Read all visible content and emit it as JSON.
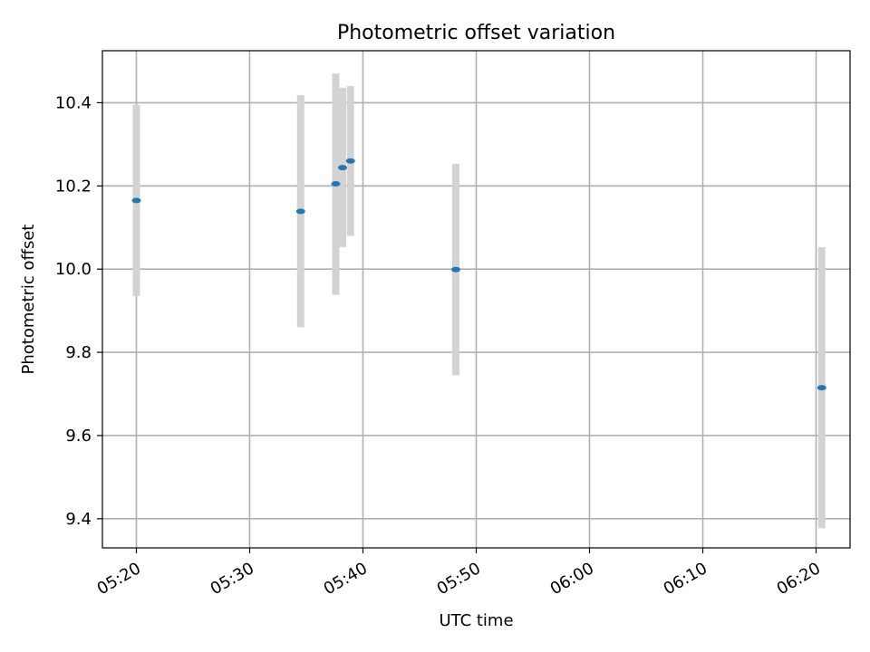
{
  "chart_data": {
    "type": "scatter",
    "title": "Photometric offset variation",
    "xlabel": "UTC time",
    "ylabel": "Photometric offset",
    "x_ticks": [
      "05:20",
      "05:30",
      "05:40",
      "05:50",
      "06:00",
      "06:10",
      "06:20"
    ],
    "y_ticks": [
      "9.4",
      "9.6",
      "9.8",
      "10.0",
      "10.2",
      "10.4"
    ],
    "xlim": [
      "05:17",
      "06:23"
    ],
    "ylim": [
      9.33,
      10.525
    ],
    "grid": true,
    "series": [
      {
        "points": [
          {
            "x": "05:20:00",
            "y": 10.165,
            "err_low": 9.935,
            "err_high": 10.395
          },
          {
            "x": "05:34:30",
            "y": 10.139,
            "err_low": 9.86,
            "err_high": 10.418
          },
          {
            "x": "05:37:36",
            "y": 10.205,
            "err_low": 9.938,
            "err_high": 10.47
          },
          {
            "x": "05:38:12",
            "y": 10.244,
            "err_low": 10.053,
            "err_high": 10.436
          },
          {
            "x": "05:38:54",
            "y": 10.26,
            "err_low": 10.08,
            "err_high": 10.44
          },
          {
            "x": "05:48:12",
            "y": 9.999,
            "err_low": 9.745,
            "err_high": 10.253
          },
          {
            "x": "06:20:30",
            "y": 9.715,
            "err_low": 9.377,
            "err_high": 10.053
          }
        ]
      }
    ],
    "colors": {
      "marker": "#1f77b4",
      "errorbar": "#d3d3d3",
      "grid": "#b0b0b0",
      "axes": "#000000"
    }
  }
}
